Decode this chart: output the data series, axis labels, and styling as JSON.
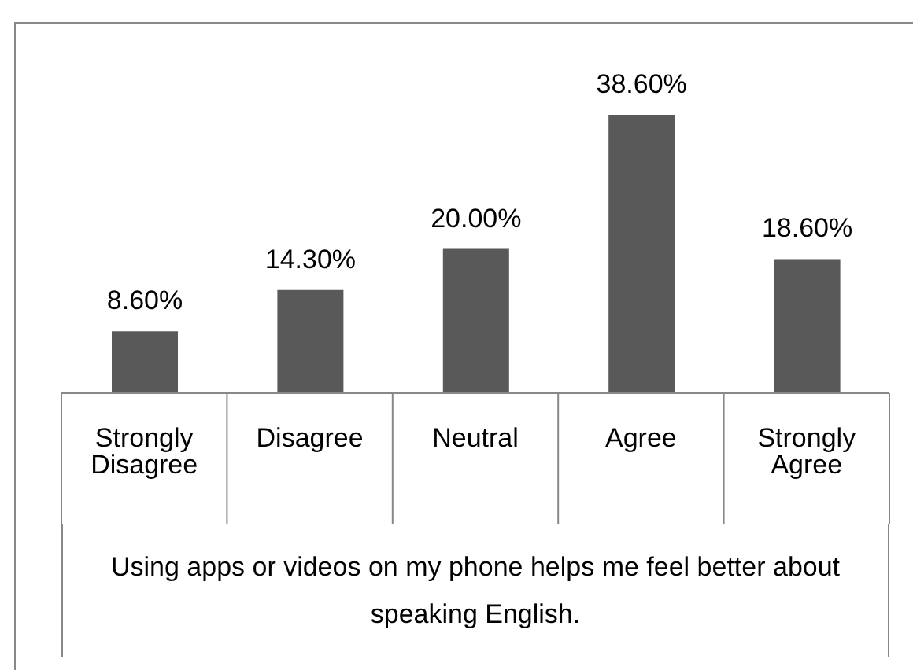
{
  "chart_data": {
    "type": "bar",
    "xlabel": "Using apps or videos on my phone helps me feel better about speaking English.",
    "categories": [
      "Strongly Disagree",
      "Disagree",
      "Neutral",
      "Agree",
      "Strongly Agree"
    ],
    "values": [
      8.6,
      14.3,
      20.0,
      38.6,
      18.6
    ],
    "value_labels": [
      "8.60%",
      "14.30%",
      "20.00%",
      "38.60%",
      "18.60%"
    ],
    "color": "#595959",
    "grid": false,
    "legend": false
  }
}
